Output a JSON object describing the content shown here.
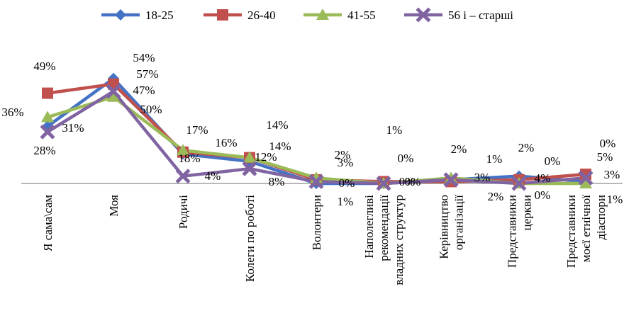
{
  "chart_data": {
    "type": "line",
    "title": "",
    "xlabel": "",
    "ylabel": "",
    "ylim": [
      0,
      60
    ],
    "grid": false,
    "legend_position": "top",
    "categories": [
      "Я сама\\сам",
      "Моя",
      "Родичі",
      "Колеги по роботі",
      "Волонтери",
      "Наполегливі рекомендації владних структур",
      "Керівництво організації",
      "Представники церкви",
      "Представники моєї етнічної діаспори"
    ],
    "category_lines": [
      [
        "Я сама\\сам"
      ],
      [
        "Моя"
      ],
      [
        "Родичі"
      ],
      [
        "Колеги по роботі"
      ],
      [
        "Волонтери"
      ],
      [
        "Наполегливі",
        "рекомендації",
        "владних структур"
      ],
      [
        "Керівництво",
        "організації"
      ],
      [
        "Представники",
        "церкви"
      ],
      [
        "Представники",
        "моєї етнічної",
        "діаспори"
      ]
    ],
    "series": [
      {
        "name": "18-25",
        "color": "#4472C4",
        "marker": "diamond",
        "values": [
          31,
          57,
          16,
          12,
          0,
          0,
          2,
          4,
          1
        ],
        "labels": [
          "31%",
          "57%",
          "16%",
          "12%",
          "0%",
          "0%",
          "2%",
          "4%",
          "1%"
        ]
      },
      {
        "name": "26-40",
        "color": "#C0504D",
        "marker": "square",
        "values": [
          49,
          54,
          17,
          14,
          2,
          1,
          1,
          2,
          5
        ],
        "labels": [
          "49%",
          "54%",
          "17%",
          "14%",
          "2%",
          "1%",
          "1%",
          "2%",
          "5%"
        ]
      },
      {
        "name": "41-55",
        "color": "#9BBB59",
        "marker": "triangle",
        "values": [
          36,
          47,
          18,
          14,
          3,
          0,
          3,
          0,
          0
        ],
        "labels": [
          "36%",
          "47%",
          "18%",
          "14%",
          "3%",
          "0%",
          "3%",
          "0%",
          "0%"
        ]
      },
      {
        "name": "56 і – старші",
        "color": "#8064A2",
        "marker": "x",
        "values": [
          28,
          50,
          4,
          8,
          1,
          0,
          2,
          0,
          3
        ],
        "labels": [
          "28%",
          "50%",
          "4%",
          "8%",
          "1%",
          "0%",
          "2%",
          "0%",
          "3%"
        ]
      }
    ]
  }
}
